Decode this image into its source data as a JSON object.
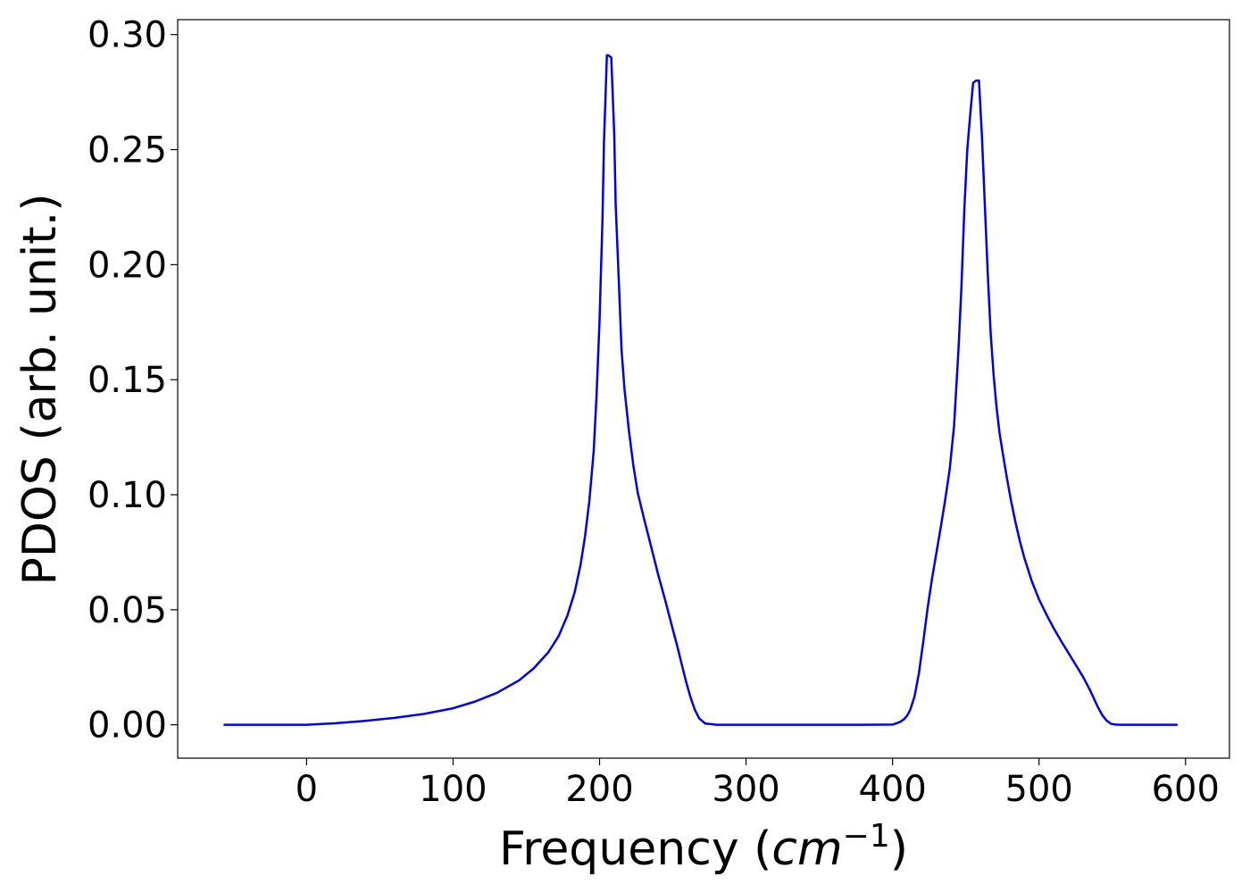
{
  "chart_data": {
    "type": "line",
    "title": "",
    "xlabel_prefix": "Frequency (",
    "xlabel_unit": "cm",
    "xlabel_sup": "−1",
    "xlabel_suffix": ")",
    "ylabel": "PDOS (arb. unit.)",
    "xlim": [
      -88,
      630
    ],
    "ylim": [
      -0.0145,
      0.3065
    ],
    "xticks": [
      0,
      100,
      200,
      300,
      400,
      500,
      600
    ],
    "xtick_labels": [
      "0",
      "100",
      "200",
      "300",
      "400",
      "500",
      "600"
    ],
    "yticks": [
      0.0,
      0.05,
      0.1,
      0.15,
      0.2,
      0.25,
      0.3
    ],
    "ytick_labels": [
      "0.00",
      "0.05",
      "0.10",
      "0.15",
      "0.20",
      "0.25",
      "0.30"
    ],
    "grid": false,
    "legend": "none",
    "series": [
      {
        "color": "#0000ee",
        "x": [
          -56,
          -30,
          0,
          20,
          40,
          60,
          80,
          100,
          115,
          130,
          145,
          155,
          165,
          172,
          178,
          183,
          187,
          190,
          193,
          196,
          198,
          200,
          202,
          203,
          205,
          206,
          208,
          210,
          211,
          213,
          215,
          217,
          220,
          223,
          226,
          230,
          235,
          240,
          245,
          250,
          253,
          256,
          259,
          262,
          265,
          268,
          272,
          280,
          300,
          340,
          380,
          400,
          405,
          408,
          410,
          412,
          415,
          418,
          421,
          424,
          427,
          430,
          433,
          436,
          439,
          442,
          445,
          447,
          449,
          451,
          453,
          455,
          457,
          459,
          461,
          463,
          465,
          467,
          469,
          471,
          473,
          475,
          478,
          481,
          484,
          487,
          490,
          495,
          500,
          505,
          510,
          515,
          520,
          525,
          530,
          535,
          540,
          543,
          546,
          549,
          552,
          556,
          560,
          580,
          594
        ],
        "y": [
          0.0,
          0.0,
          0.0,
          0.0007,
          0.0017,
          0.003,
          0.0047,
          0.0072,
          0.0101,
          0.0139,
          0.0193,
          0.0245,
          0.0315,
          0.0385,
          0.0474,
          0.0576,
          0.0695,
          0.0816,
          0.0972,
          0.119,
          0.144,
          0.176,
          0.22,
          0.253,
          0.291,
          0.291,
          0.29,
          0.257,
          0.226,
          0.195,
          0.163,
          0.146,
          0.128,
          0.113,
          0.101,
          0.0905,
          0.0779,
          0.0653,
          0.0537,
          0.0414,
          0.0343,
          0.0265,
          0.0189,
          0.0121,
          0.0066,
          0.0028,
          0.0006,
          0.0,
          0.0,
          0.0,
          0.0,
          0.0001,
          0.0012,
          0.0025,
          0.004,
          0.0064,
          0.0123,
          0.0224,
          0.0363,
          0.051,
          0.0637,
          0.075,
          0.0862,
          0.0981,
          0.111,
          0.13,
          0.163,
          0.19,
          0.224,
          0.25,
          0.265,
          0.279,
          0.28,
          0.28,
          0.256,
          0.226,
          0.196,
          0.17,
          0.152,
          0.138,
          0.127,
          0.119,
          0.1075,
          0.097,
          0.0878,
          0.0796,
          0.0725,
          0.0625,
          0.0545,
          0.048,
          0.042,
          0.0365,
          0.0313,
          0.0261,
          0.0209,
          0.0148,
          0.0079,
          0.0044,
          0.0019,
          0.0005,
          0.0001,
          0.0,
          0.0,
          0.0,
          0.0
        ]
      }
    ]
  }
}
